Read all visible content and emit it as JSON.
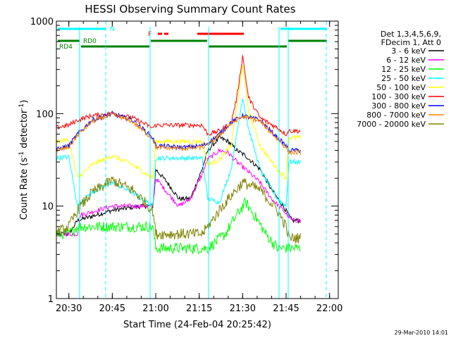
{
  "chart_data": {
    "type": "line",
    "title": "HESSI Observing Summary Count Rates",
    "xlabel": "Start Time (24-Feb-04 20:25:42)",
    "ylabel": "Count Rate (s⁻¹ detector⁻¹)",
    "ylabel_main": "Count Rate (s",
    "ylabel_sup1": "-1",
    "ylabel_mid": " detector",
    "ylabel_sup2": "-1",
    "ylabel_end": ")",
    "yscale": "log",
    "xlim": [
      "20:25:42",
      "22:03:00"
    ],
    "ylim": [
      1,
      1000
    ],
    "x_ticks": [
      "20:30",
      "20:45",
      "21:00",
      "21:15",
      "21:30",
      "21:45",
      "22:00"
    ],
    "y_ticks": [
      "1",
      "10",
      "100",
      "1000"
    ],
    "timestamp": "29-Mar-2010 14:01",
    "legend": {
      "position": "right",
      "header_lines": [
        "Det 1,3,4,5,6,9,",
        "FDecim 1, Att 0"
      ]
    },
    "flags": [
      {
        "name": "N",
        "color": "#00ffff"
      },
      {
        "name": "RD0",
        "color": "#008000"
      },
      {
        "name": "RD4",
        "color": "#008000"
      },
      {
        "name": "F",
        "color": "#ff0000"
      }
    ],
    "series": [
      {
        "name": "3 - 6 keV",
        "color": "#000000",
        "x": [
          "20:25",
          "20:30",
          "20:33",
          "20:45",
          "20:55",
          "20:59",
          "21:00",
          "21:04",
          "21:08",
          "21:12",
          "21:16",
          "21:18",
          "21:22",
          "21:25",
          "21:28",
          "21:31",
          "21:36",
          "21:40",
          "21:44",
          "21:47",
          "21:50"
        ],
        "y": [
          5,
          5,
          7,
          9,
          10,
          10,
          25,
          18,
          12,
          12,
          25,
          40,
          55,
          50,
          40,
          35,
          25,
          15,
          10,
          7,
          7
        ]
      },
      {
        "name": "6 - 12 keV",
        "color": "#ff00ff",
        "x": [
          "20:25",
          "20:33",
          "20:34",
          "20:45",
          "20:55",
          "20:59",
          "21:00",
          "21:04",
          "21:08",
          "21:12",
          "21:16",
          "21:18",
          "21:22",
          "21:25",
          "21:28",
          "21:31",
          "21:36",
          "21:40",
          "21:44",
          "21:47",
          "21:50"
        ],
        "y": [
          5,
          5,
          8,
          10,
          10,
          10,
          20,
          14,
          10,
          12,
          22,
          32,
          40,
          38,
          30,
          25,
          18,
          12,
          9,
          7,
          7
        ]
      },
      {
        "name": "12 - 25 keV",
        "color": "#00ff00",
        "x": [
          "20:25",
          "20:30",
          "20:33",
          "20:45",
          "20:59",
          "21:00",
          "21:10",
          "21:18",
          "21:24",
          "21:28",
          "21:31",
          "21:34",
          "21:38",
          "21:42",
          "21:45",
          "21:50"
        ],
        "y": [
          5,
          5,
          6,
          6,
          6,
          3.5,
          3.5,
          3.5,
          5,
          8,
          11,
          8,
          5,
          3.5,
          3.5,
          3.5
        ]
      },
      {
        "name": "25 - 50 keV",
        "color": "#00ffff",
        "x": [
          "20:25",
          "20:30",
          "20:33",
          "20:38",
          "20:45",
          "20:52",
          "20:59",
          "21:00",
          "21:10",
          "21:16",
          "21:18",
          "21:22",
          "21:26",
          "21:28",
          "21:30",
          "21:32",
          "21:36",
          "21:42",
          "21:45",
          "21:46",
          "21:50"
        ],
        "y": [
          33,
          34,
          10,
          14,
          18,
          14,
          10,
          33,
          33,
          33,
          12,
          11,
          25,
          60,
          150,
          70,
          25,
          12,
          10,
          30,
          30
        ]
      },
      {
        "name": "50 - 100 keV",
        "color": "#ffff00",
        "x": [
          "20:25",
          "20:30",
          "20:33",
          "20:38",
          "20:45",
          "20:52",
          "20:59",
          "21:00",
          "21:10",
          "21:16",
          "21:18",
          "21:22",
          "21:26",
          "21:28",
          "21:30",
          "21:32",
          "21:36",
          "21:42",
          "21:45",
          "21:46",
          "21:50"
        ],
        "y": [
          50,
          52,
          20,
          28,
          35,
          28,
          20,
          50,
          50,
          50,
          28,
          32,
          45,
          120,
          350,
          110,
          45,
          25,
          20,
          55,
          55
        ]
      },
      {
        "name": "100 - 300 keV",
        "color": "#ff0000",
        "x": [
          "20:25",
          "20:30",
          "20:33",
          "20:38",
          "20:45",
          "20:52",
          "20:59",
          "21:00",
          "21:10",
          "21:16",
          "21:18",
          "21:22",
          "21:26",
          "21:28",
          "21:30",
          "21:32",
          "21:36",
          "21:42",
          "21:45",
          "21:46",
          "21:50"
        ],
        "y": [
          70,
          75,
          85,
          95,
          100,
          90,
          70,
          75,
          75,
          75,
          60,
          65,
          80,
          150,
          420,
          150,
          90,
          70,
          60,
          65,
          65
        ]
      },
      {
        "name": "300 - 800 keV",
        "color": "#0000ff",
        "x": [
          "20:25",
          "20:30",
          "20:33",
          "20:38",
          "20:45",
          "20:52",
          "20:59",
          "21:00",
          "21:10",
          "21:16",
          "21:18",
          "21:22",
          "21:26",
          "21:30",
          "21:36",
          "21:42",
          "21:45",
          "21:46",
          "21:50"
        ],
        "y": [
          40,
          45,
          60,
          85,
          100,
          85,
          55,
          45,
          43,
          45,
          48,
          60,
          80,
          95,
          85,
          55,
          45,
          40,
          40
        ]
      },
      {
        "name": "800 - 7000 keV",
        "color": "#ff8000",
        "x": [
          "20:25",
          "20:30",
          "20:33",
          "20:38",
          "20:45",
          "20:52",
          "20:59",
          "21:00",
          "21:10",
          "21:16",
          "21:18",
          "21:22",
          "21:26",
          "21:30",
          "21:36",
          "21:42",
          "21:45",
          "21:46",
          "21:50"
        ],
        "y": [
          39,
          43,
          58,
          82,
          98,
          82,
          53,
          43,
          42,
          43,
          46,
          58,
          78,
          93,
          83,
          53,
          43,
          38,
          38
        ]
      },
      {
        "name": "7000 - 20000 keV",
        "color": "#808000",
        "x": [
          "20:25",
          "20:30",
          "20:33",
          "20:38",
          "20:45",
          "20:52",
          "20:59",
          "21:00",
          "21:10",
          "21:16",
          "21:18",
          "21:22",
          "21:26",
          "21:30",
          "21:36",
          "21:42",
          "21:45",
          "21:46",
          "21:50"
        ],
        "y": [
          5,
          6,
          9,
          14,
          19,
          15,
          9,
          5,
          5,
          5,
          6,
          9,
          13,
          18,
          15,
          9,
          6,
          4.5,
          4.5
        ]
      }
    ]
  }
}
